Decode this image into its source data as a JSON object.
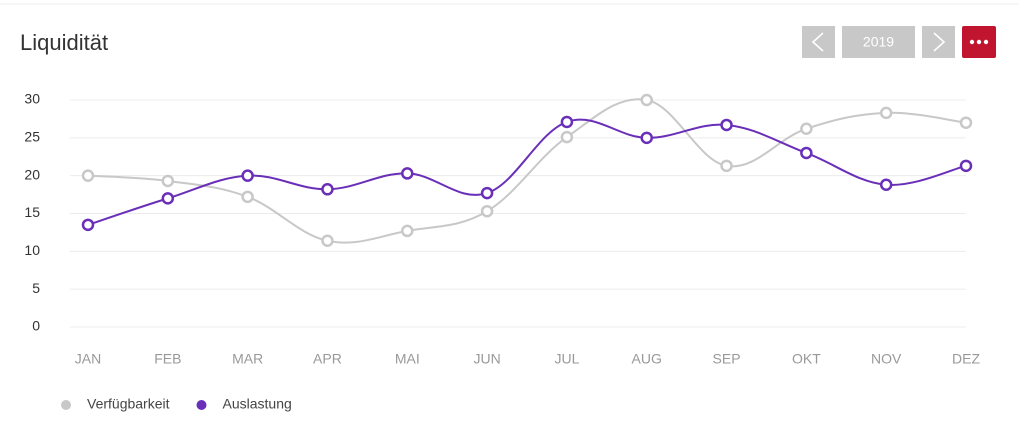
{
  "chart_data": {
    "type": "line",
    "title": "Liquidität",
    "categories": [
      "JAN",
      "FEB",
      "MAR",
      "APR",
      "MAI",
      "JUN",
      "JUL",
      "AUG",
      "SEP",
      "OKT",
      "NOV",
      "DEZ"
    ],
    "series": [
      {
        "name": "Verfügbarkeit",
        "color": "#c8c8c8",
        "values": [
          20,
          19.3,
          17.2,
          11.4,
          12.7,
          15.3,
          25.1,
          30,
          21.3,
          26.2,
          28.3,
          27
        ]
      },
      {
        "name": "Auslastung",
        "color": "#6a2fb8",
        "values": [
          13.5,
          17,
          20,
          18.2,
          20.3,
          17.7,
          27.1,
          25,
          26.7,
          23,
          18.8,
          21.3
        ]
      }
    ],
    "ylim": [
      0,
      30
    ],
    "yticks": [
      0,
      5,
      10,
      15,
      20,
      25,
      30
    ],
    "grid": true,
    "legend": "bottom-left"
  },
  "toolbar": {
    "year": "2019"
  }
}
